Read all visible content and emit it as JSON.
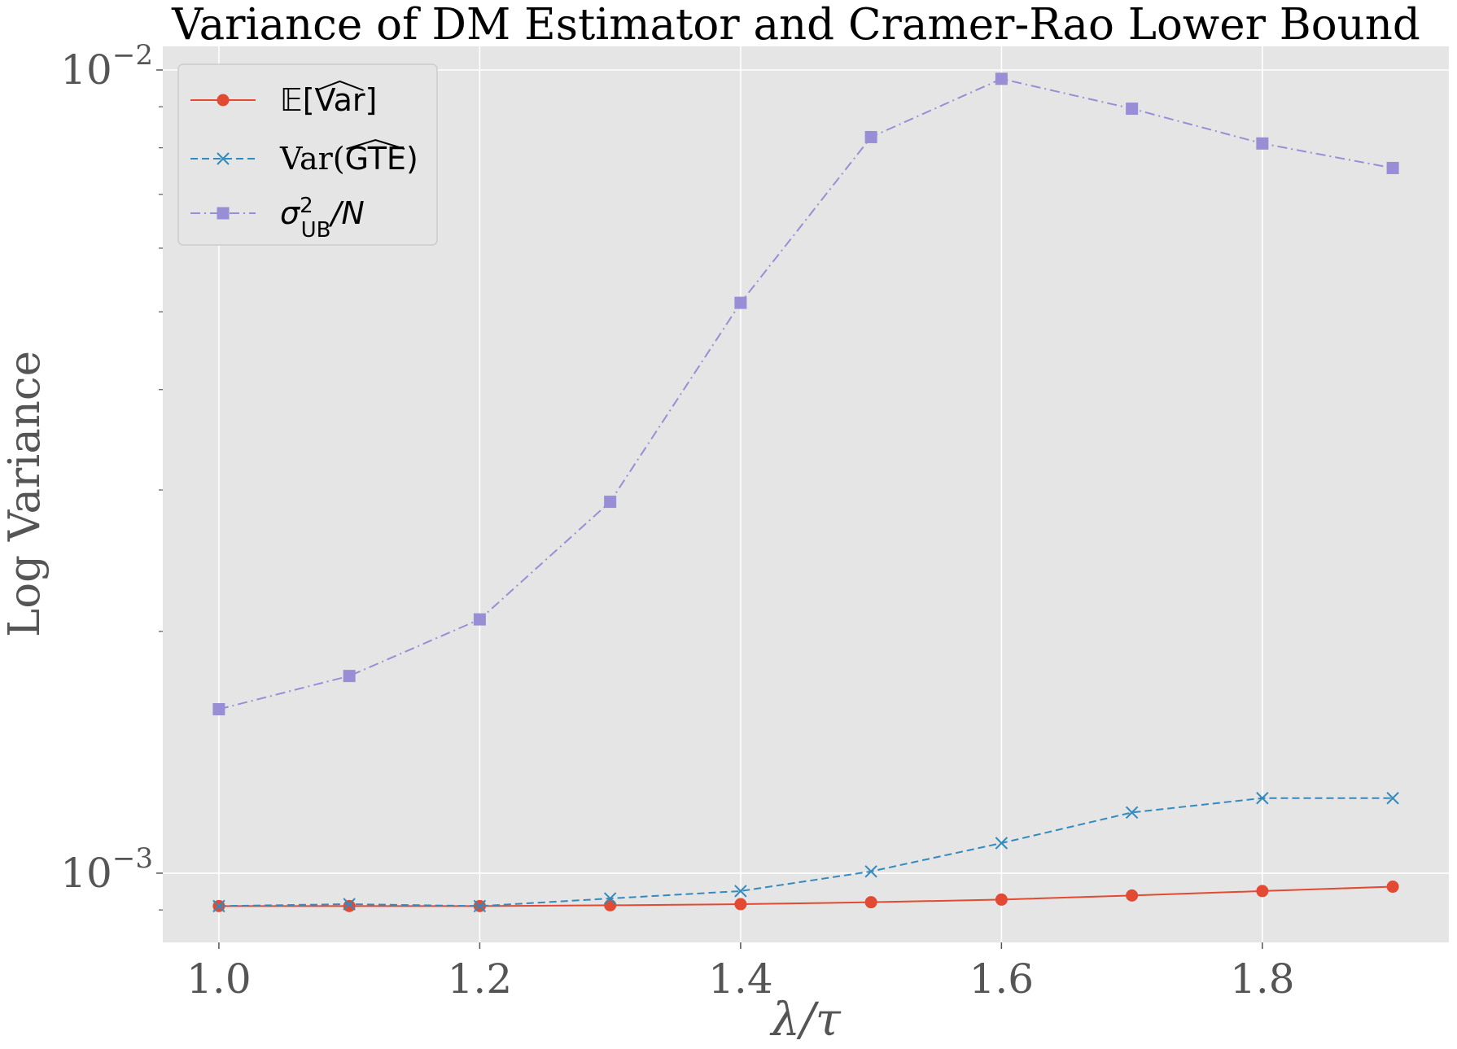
{
  "chart_data": {
    "type": "line",
    "title": "Variance of DM Estimator and Cramer-Rao Lower Bound",
    "xlabel": "λ/τ",
    "ylabel": "Log Variance",
    "yscale": "log",
    "x": [
      1.0,
      1.1,
      1.2,
      1.3,
      1.4,
      1.5,
      1.6,
      1.7,
      1.8,
      1.9
    ],
    "xlim": [
      0.957,
      1.943
    ],
    "ylim": [
      0.00082,
      0.0107
    ],
    "x_ticks": [
      {
        "value": 1.0,
        "label": "1.0"
      },
      {
        "value": 1.2,
        "label": "1.2"
      },
      {
        "value": 1.4,
        "label": "1.4"
      },
      {
        "value": 1.6,
        "label": "1.6"
      },
      {
        "value": 1.8,
        "label": "1.8"
      }
    ],
    "y_major_ticks": [
      {
        "value": 0.001,
        "base": "10",
        "exponent": "−3"
      },
      {
        "value": 0.01,
        "base": "10",
        "exponent": "−2"
      }
    ],
    "y_minor_ticks": [
      0.0009,
      0.002,
      0.003,
      0.004,
      0.005,
      0.006,
      0.007,
      0.008,
      0.009
    ],
    "grid": true,
    "legend_position": "top-left",
    "series": [
      {
        "name": "E[Var^]",
        "legend_parts": {
          "prefix": "𝔼[",
          "hat": "Var",
          "suffix": "]"
        },
        "color": "#E24A33",
        "linestyle": "solid",
        "marker": "circle",
        "values": [
          0.00091,
          0.00091,
          0.00091,
          0.000912,
          0.000915,
          0.00092,
          0.000927,
          0.000938,
          0.00095,
          0.000962
        ]
      },
      {
        "name": "Var(GTE^)",
        "legend_parts": {
          "prefix": "Var(",
          "hat": "GTE",
          "suffix": ")"
        },
        "color": "#348ABD",
        "linestyle": "dashed",
        "marker": "x",
        "values": [
          0.00091,
          0.000915,
          0.00091,
          0.00093,
          0.00095,
          0.001005,
          0.00109,
          0.00119,
          0.00124,
          0.00124
        ]
      },
      {
        "name": "σ²_UB/N",
        "legend_parts": {
          "prefix": "σ",
          "sup": "2",
          "sub": "UB",
          "suffix": "/N"
        },
        "color": "#988ED5",
        "linestyle": "dashdot",
        "marker": "square",
        "values": [
          0.0016,
          0.00176,
          0.00207,
          0.0029,
          0.00513,
          0.00825,
          0.00975,
          0.00895,
          0.0081,
          0.00755
        ]
      }
    ]
  }
}
